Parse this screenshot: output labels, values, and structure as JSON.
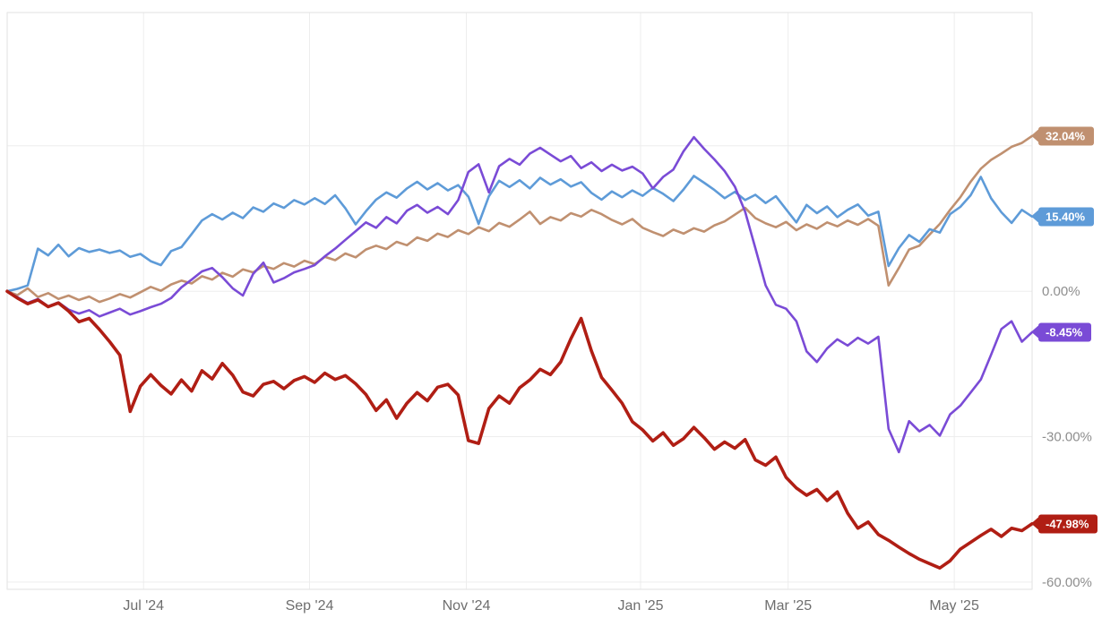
{
  "page": {
    "background": "#ffffff"
  },
  "chart_data": {
    "type": "line",
    "title": "",
    "xlabel": "",
    "ylabel": "",
    "legend": "none",
    "grid": true,
    "ylim": [
      -61.5,
      57.5
    ],
    "y_axis": {
      "side": "right",
      "ticks": [
        {
          "label": "0.00%",
          "value": 0
        },
        {
          "label": "-30.00%",
          "value": -30
        },
        {
          "label": "-60.00%",
          "value": -60
        }
      ],
      "grid_values": [
        30,
        0,
        -30,
        -60
      ]
    },
    "x_axis": {
      "ticks": [
        {
          "label": "Jul '24",
          "pos": 0.133
        },
        {
          "label": "Sep '24",
          "pos": 0.295
        },
        {
          "label": "Nov '24",
          "pos": 0.448
        },
        {
          "label": "Jan '25",
          "pos": 0.618
        },
        {
          "label": "Mar '25",
          "pos": 0.762
        },
        {
          "label": "May '25",
          "pos": 0.924
        }
      ]
    },
    "series": [
      {
        "name": "tan",
        "color": "#C09070",
        "line_width": 2.6,
        "end_label": "32.04%",
        "end_value": 32.04,
        "values": [
          0,
          -0.8,
          0.6,
          -1.2,
          -0.4,
          -1.6,
          -0.9,
          -1.8,
          -1.1,
          -2.2,
          -1.5,
          -0.6,
          -1.3,
          -0.2,
          0.9,
          0.1,
          1.4,
          2.2,
          1.6,
          3.1,
          2.4,
          3.8,
          3.0,
          4.5,
          3.9,
          5.2,
          4.6,
          5.8,
          5.1,
          6.3,
          5.6,
          7.1,
          6.4,
          7.8,
          7.0,
          8.6,
          9.4,
          8.7,
          10.2,
          9.5,
          11.1,
          10.4,
          11.9,
          11.2,
          12.6,
          11.8,
          13.2,
          12.4,
          14.1,
          13.3,
          14.8,
          16.4,
          13.9,
          15.3,
          14.6,
          16.1,
          15.4,
          16.8,
          15.9,
          14.7,
          13.8,
          14.9,
          13.1,
          12.2,
          11.4,
          12.7,
          11.9,
          13.0,
          12.3,
          13.6,
          14.4,
          15.8,
          17.2,
          15.1,
          14.0,
          13.2,
          14.3,
          12.6,
          13.8,
          12.9,
          14.2,
          13.4,
          14.6,
          13.7,
          14.9,
          13.5,
          1.2,
          4.8,
          8.6,
          9.4,
          11.7,
          13.9,
          16.8,
          19.4,
          22.6,
          25.3,
          27.1,
          28.4,
          29.8,
          30.6,
          32.04
        ]
      },
      {
        "name": "blue",
        "color": "#5E9BD8",
        "line_width": 2.6,
        "end_label": "15.40%",
        "end_value": 15.4,
        "values": [
          0,
          0.5,
          1.2,
          8.8,
          7.4,
          9.6,
          7.2,
          8.9,
          8.1,
          8.6,
          7.9,
          8.4,
          7.1,
          7.7,
          6.2,
          5.4,
          8.3,
          9.1,
          11.8,
          14.6,
          15.9,
          14.8,
          16.2,
          15.1,
          17.3,
          16.4,
          18.1,
          17.2,
          18.8,
          17.9,
          19.2,
          18.0,
          19.8,
          17.1,
          13.8,
          16.5,
          18.9,
          20.4,
          19.3,
          21.2,
          22.6,
          21.0,
          22.3,
          20.8,
          21.9,
          19.5,
          13.9,
          19.6,
          22.8,
          21.5,
          22.9,
          21.2,
          23.4,
          22.0,
          23.1,
          21.6,
          22.5,
          20.3,
          18.9,
          20.6,
          19.4,
          20.8,
          19.7,
          21.3,
          20.1,
          18.6,
          21.0,
          23.8,
          22.4,
          20.9,
          19.2,
          20.5,
          18.8,
          19.9,
          18.2,
          19.6,
          16.9,
          14.2,
          17.8,
          16.1,
          17.5,
          15.3,
          16.8,
          17.9,
          15.6,
          16.4,
          5.2,
          8.9,
          11.6,
          10.2,
          12.8,
          12.1,
          15.9,
          17.4,
          19.8,
          23.6,
          19.2,
          16.3,
          14.1,
          16.8,
          15.4
        ]
      },
      {
        "name": "purple",
        "color": "#7A4BD6",
        "line_width": 2.6,
        "end_label": "-8.45%",
        "end_value": -8.45,
        "values": [
          0,
          -1.2,
          -2.4,
          -1.6,
          -3.1,
          -2.3,
          -3.8,
          -4.6,
          -3.9,
          -5.2,
          -4.4,
          -3.6,
          -4.8,
          -4.1,
          -3.3,
          -2.6,
          -1.4,
          0.8,
          2.4,
          4.1,
          4.8,
          2.9,
          0.6,
          -0.9,
          3.6,
          5.9,
          1.8,
          2.7,
          3.9,
          4.6,
          5.4,
          7.2,
          8.8,
          10.6,
          12.4,
          14.2,
          13.1,
          15.3,
          14.0,
          16.6,
          17.8,
          16.2,
          17.4,
          15.9,
          18.8,
          24.6,
          26.2,
          20.4,
          25.8,
          27.3,
          26.1,
          28.4,
          29.6,
          28.2,
          26.8,
          27.9,
          25.4,
          26.6,
          24.8,
          26.1,
          24.9,
          25.7,
          24.3,
          21.2,
          23.6,
          25.1,
          28.9,
          31.8,
          29.4,
          27.2,
          24.8,
          21.6,
          16.4,
          8.9,
          1.2,
          -2.8,
          -3.6,
          -6.2,
          -12.4,
          -14.6,
          -11.8,
          -9.9,
          -11.2,
          -9.6,
          -10.8,
          -9.4,
          -28.4,
          -33.2,
          -26.8,
          -28.9,
          -27.6,
          -29.8,
          -25.4,
          -23.6,
          -20.9,
          -18.2,
          -13.1,
          -7.8,
          -6.2,
          -10.4,
          -8.45
        ]
      },
      {
        "name": "red",
        "color": "#B01E14",
        "line_width": 3.6,
        "end_label": "-47.98%",
        "end_value": -47.98,
        "values": [
          0,
          -1.4,
          -2.6,
          -1.8,
          -3.2,
          -2.4,
          -4.1,
          -6.3,
          -5.6,
          -7.9,
          -10.4,
          -13.2,
          -24.8,
          -19.6,
          -17.2,
          -19.4,
          -21.2,
          -18.3,
          -20.6,
          -16.4,
          -18.1,
          -14.9,
          -17.3,
          -20.8,
          -21.6,
          -19.2,
          -18.6,
          -20.1,
          -18.4,
          -17.6,
          -18.8,
          -16.9,
          -18.2,
          -17.4,
          -19.1,
          -21.3,
          -24.6,
          -22.4,
          -26.2,
          -23.1,
          -20.9,
          -22.6,
          -19.8,
          -19.2,
          -21.4,
          -30.8,
          -31.4,
          -24.2,
          -21.6,
          -23.1,
          -19.9,
          -18.3,
          -16.1,
          -17.2,
          -14.6,
          -9.8,
          -5.6,
          -12.3,
          -17.8,
          -20.4,
          -23.1,
          -26.9,
          -28.6,
          -30.9,
          -29.2,
          -31.8,
          -30.4,
          -28.1,
          -30.2,
          -32.6,
          -31.1,
          -32.4,
          -30.6,
          -34.8,
          -35.9,
          -34.2,
          -38.4,
          -40.6,
          -42.1,
          -40.9,
          -43.2,
          -41.4,
          -45.8,
          -48.9,
          -47.6,
          -50.2,
          -51.4,
          -52.8,
          -54.1,
          -55.3,
          -56.2,
          -57.1,
          -55.6,
          -53.2,
          -51.8,
          -50.4,
          -49.1,
          -50.6,
          -48.9,
          -49.4,
          -47.98
        ]
      }
    ]
  }
}
